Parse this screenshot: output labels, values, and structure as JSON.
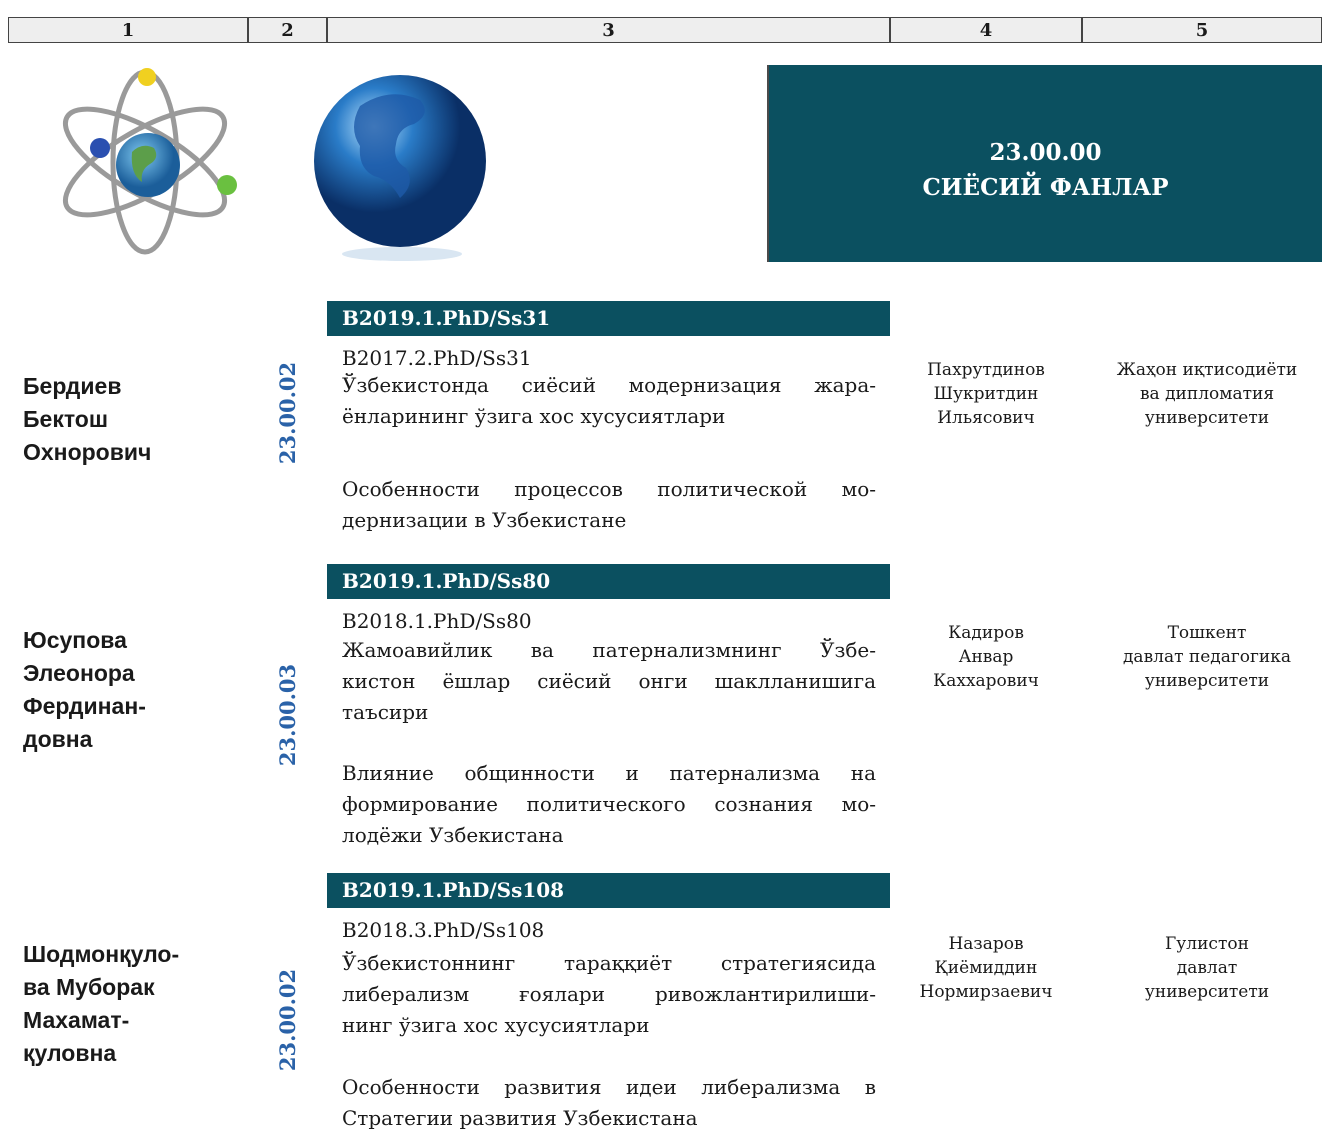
{
  "header": {
    "columns": [
      "1",
      "2",
      "3",
      "4",
      "5"
    ]
  },
  "banner": {
    "code": "23.00.00",
    "title": "СИЁСИЙ ФАНЛАР"
  },
  "entries": [
    {
      "name": [
        "Бердиев",
        "Бектош",
        "Охнорович"
      ],
      "specialty": "23.00.02",
      "registration": "B2019.1.PhD/Ss31",
      "previous_registration": "B2017.2.PhD/Ss31",
      "title_uz": [
        "Ўзбекистонда сиёсий модернизация жара-",
        "ёнларининг ўзига хос хусусиятлари"
      ],
      "title_ru": [
        "Особенности процессов политической мо-",
        "дернизации в Узбекистане"
      ],
      "supervisor": [
        "Пахрутдинов",
        "Шукритдин",
        "Ильясович"
      ],
      "institution": [
        "Жаҳон иқтисодиёти",
        "ва дипломатия",
        "университети"
      ]
    },
    {
      "name": [
        "Юсупова",
        "Элеонора",
        "Фердинан-",
        "довна"
      ],
      "specialty": "23.00.03",
      "registration": "B2019.1.PhD/Ss80",
      "previous_registration": "B2018.1.PhD/Ss80",
      "title_uz": [
        "Жамоавийлик ва патернализмнинг Ўзбе-",
        "кистон ёшлар сиёсий онги шаклланишига",
        "таъсири"
      ],
      "title_ru": [
        "Влияние общинности и патернализма на",
        "формирование политического сознания мо-",
        "лодёжи Узбекистана"
      ],
      "supervisor": [
        "Кадиров",
        "Анвар",
        "Каххарович"
      ],
      "institution": [
        "Тошкент",
        "давлат педагогика",
        "университети"
      ]
    },
    {
      "name": [
        "Шодмонқуло-",
        "ва Муборак",
        "Махамат-",
        "қуловна"
      ],
      "specialty": "23.00.02",
      "registration": "B2019.1.PhD/Ss108",
      "previous_registration": "B2018.3.PhD/Ss108",
      "title_uz": [
        "Ўзбекистоннинг тараққиёт стратегиясида",
        "либерализм ғоялари ривожлантирилиши-",
        "нинг ўзига хос хусусиятлари"
      ],
      "title_ru": [
        "Особенности развития идеи либерализма в",
        "Стратегии развития Узбекистана"
      ],
      "supervisor": [
        "Назаров",
        "Қиёмиддин",
        "Нормирзаевич"
      ],
      "institution": [
        "Гулистон",
        "давлат",
        "университети"
      ]
    }
  ]
}
